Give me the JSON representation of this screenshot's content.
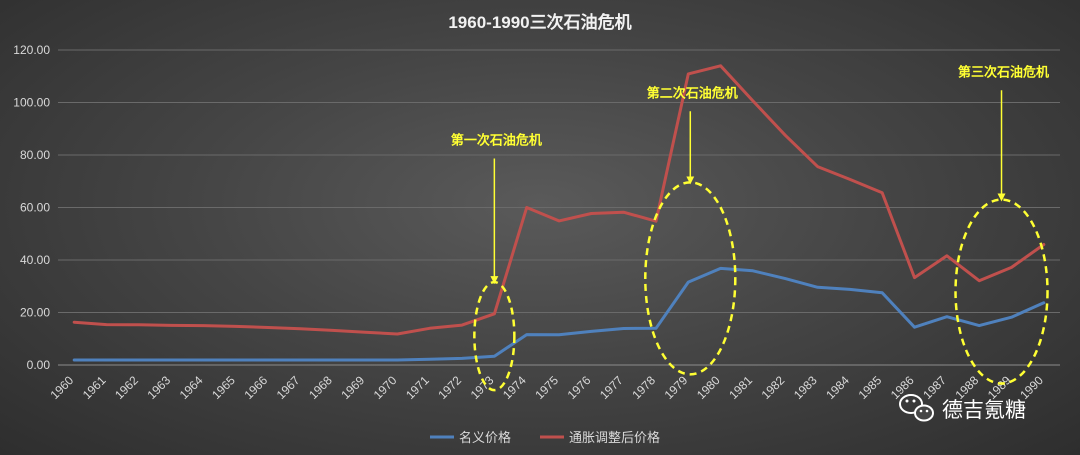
{
  "chart_data": {
    "type": "line",
    "title": "1960-1990三次石油危机",
    "xlabel": "",
    "ylabel": "",
    "x": [
      "1960",
      "1961",
      "1962",
      "1963",
      "1964",
      "1965",
      "1966",
      "1967",
      "1968",
      "1969",
      "1970",
      "1971",
      "1972",
      "1973",
      "1974",
      "1975",
      "1976",
      "1977",
      "1978",
      "1979",
      "1980",
      "1981",
      "1982",
      "1983",
      "1984",
      "1985",
      "1986",
      "1987",
      "1988",
      "1989",
      "1990"
    ],
    "y_ticks": [
      "0.00",
      "20.00",
      "40.00",
      "60.00",
      "80.00",
      "100.00",
      "120.00"
    ],
    "ylim": [
      0,
      120
    ],
    "grid": true,
    "legend_position": "bottom",
    "series": [
      {
        "name": "名义价格",
        "color": "#4f81bd",
        "values": [
          1.9,
          1.9,
          1.9,
          1.9,
          1.9,
          1.9,
          1.9,
          1.9,
          1.9,
          1.9,
          1.9,
          2.2,
          2.5,
          3.3,
          11.6,
          11.5,
          12.8,
          13.9,
          14.0,
          31.6,
          36.8,
          35.9,
          32.9,
          29.6,
          28.8,
          27.5,
          14.4,
          18.4,
          15.0,
          18.2,
          23.7
        ]
      },
      {
        "name": "通胀调整后价格",
        "color": "#c0504d",
        "values": [
          16.3,
          15.4,
          15.3,
          15.1,
          15.0,
          14.7,
          14.3,
          13.8,
          13.2,
          12.5,
          11.8,
          14.0,
          15.2,
          19.5,
          60.0,
          54.9,
          57.7,
          58.2,
          54.8,
          110.9,
          114.0,
          100.6,
          87.5,
          75.6,
          70.7,
          65.6,
          33.3,
          41.6,
          32.1,
          37.2,
          45.9
        ]
      }
    ],
    "annotations": [
      {
        "text": "第一次石油危机",
        "x": "1973",
        "y": 84
      },
      {
        "text": "第二次石油危机",
        "x": "1979",
        "y": 102
      },
      {
        "text": "第三次石油危机",
        "x": "1989",
        "y": 110
      }
    ]
  },
  "watermark": {
    "text": "德吉氪糖",
    "icon": "wechat-icon"
  }
}
